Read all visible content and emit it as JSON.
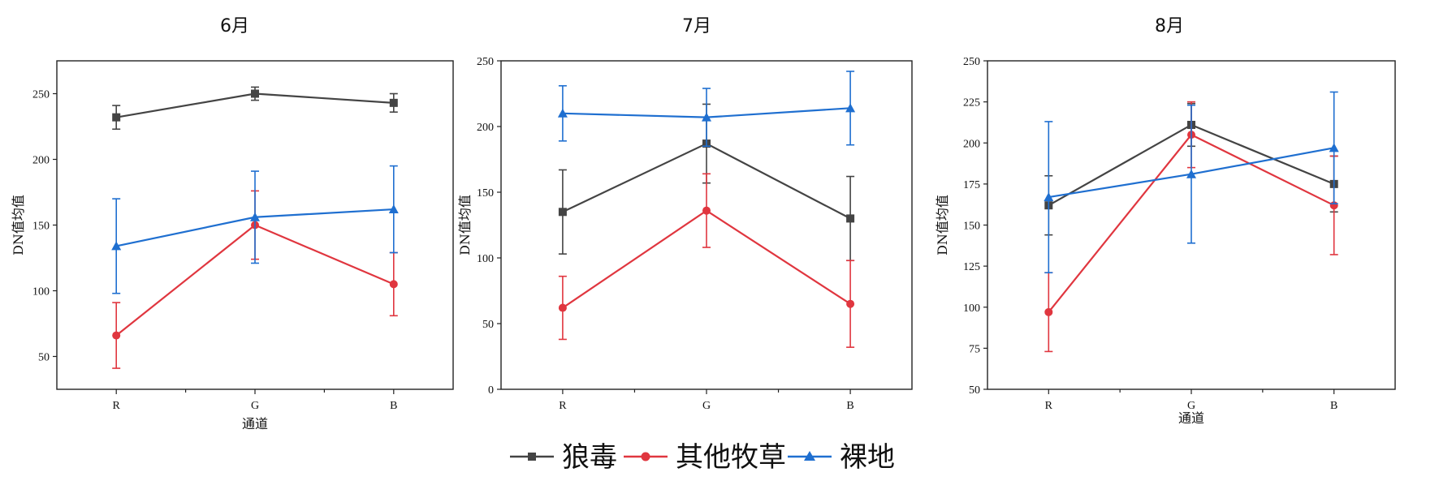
{
  "colors": {
    "black": "#444444",
    "red": "#e0363f",
    "blue": "#1f6fd0"
  },
  "legend": {
    "items": [
      {
        "name": "狼毒",
        "color": "#444444",
        "marker": "square"
      },
      {
        "name": "其他牧草",
        "color": "#e0363f",
        "marker": "circle"
      },
      {
        "name": "裸地",
        "color": "#1f6fd0",
        "marker": "triangle"
      }
    ]
  },
  "chart_data": [
    {
      "type": "line",
      "title": "6月",
      "xlabel": "通道",
      "ylabel": "DN值均值",
      "categories": [
        "R",
        "G",
        "B"
      ],
      "ylim": [
        25,
        275
      ],
      "yticks": [
        50,
        100,
        150,
        200,
        250
      ],
      "series": [
        {
          "name": "狼毒",
          "color": "#444444",
          "marker": "square",
          "values": [
            232,
            250,
            243
          ],
          "err": [
            9,
            5,
            7
          ]
        },
        {
          "name": "其他牧草",
          "color": "#e0363f",
          "marker": "circle",
          "values": [
            66,
            150,
            105
          ],
          "err": [
            25,
            26,
            24
          ]
        },
        {
          "name": "裸地",
          "color": "#1f6fd0",
          "marker": "triangle",
          "values": [
            134,
            156,
            162
          ],
          "err": [
            36,
            35,
            33
          ]
        }
      ]
    },
    {
      "type": "line",
      "title": "7月",
      "xlabel": "",
      "ylabel": "DN值均值",
      "categories": [
        "R",
        "G",
        "B"
      ],
      "ylim": [
        0,
        250
      ],
      "yticks": [
        0,
        50,
        100,
        150,
        200,
        250
      ],
      "series": [
        {
          "name": "狼毒",
          "color": "#444444",
          "marker": "square",
          "values": [
            135,
            187,
            130
          ],
          "err": [
            32,
            30,
            32
          ]
        },
        {
          "name": "其他牧草",
          "color": "#e0363f",
          "marker": "circle",
          "values": [
            62,
            136,
            65
          ],
          "err": [
            24,
            28,
            33
          ]
        },
        {
          "name": "裸地",
          "color": "#1f6fd0",
          "marker": "triangle",
          "values": [
            210,
            207,
            214
          ],
          "err": [
            21,
            22,
            28
          ]
        }
      ]
    },
    {
      "type": "line",
      "title": "8月",
      "xlabel": "通道",
      "ylabel": "DN值均值",
      "categories": [
        "R",
        "G",
        "B"
      ],
      "ylim": [
        50,
        250
      ],
      "yticks": [
        50,
        75,
        100,
        125,
        150,
        175,
        200,
        225,
        250
      ],
      "series": [
        {
          "name": "狼毒",
          "color": "#444444",
          "marker": "square",
          "values": [
            162,
            211,
            175
          ],
          "err": [
            18,
            13,
            17
          ]
        },
        {
          "name": "其他牧草",
          "color": "#e0363f",
          "marker": "circle",
          "values": [
            97,
            205,
            162
          ],
          "err": [
            24,
            20,
            30
          ]
        },
        {
          "name": "裸地",
          "color": "#1f6fd0",
          "marker": "triangle",
          "values": [
            167,
            181,
            197
          ],
          "err": [
            46,
            42,
            34
          ]
        }
      ]
    }
  ]
}
